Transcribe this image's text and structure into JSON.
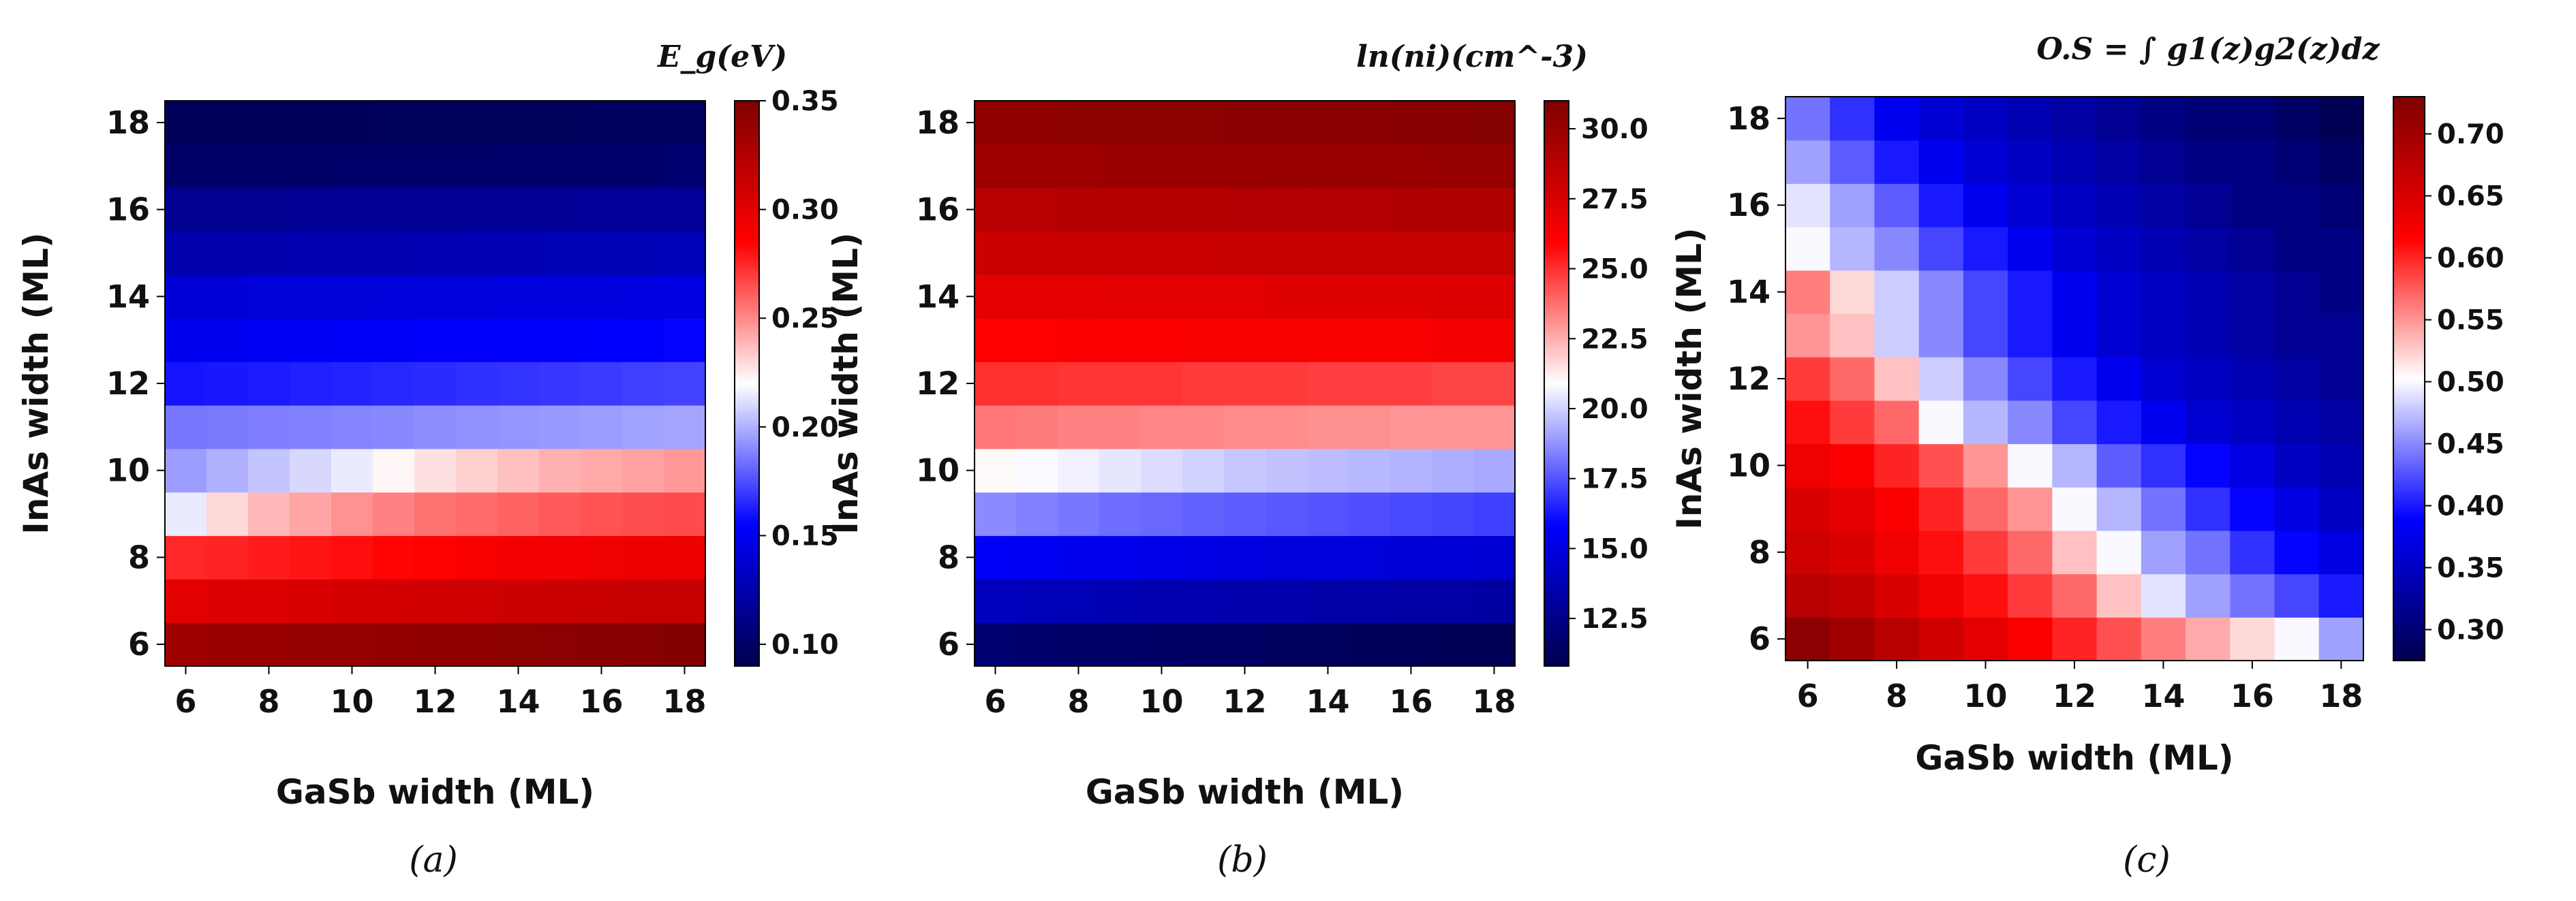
{
  "chart_data": [
    {
      "type": "heatmap",
      "caption": "(a)",
      "colorbar_title": "E_g(eV)",
      "xlabel": "GaSb width (ML)",
      "ylabel": "InAs width (ML)",
      "x": [
        6,
        7,
        8,
        9,
        10,
        11,
        12,
        13,
        14,
        15,
        16,
        17,
        18
      ],
      "y": [
        6,
        7,
        8,
        9,
        10,
        11,
        12,
        13,
        14,
        15,
        16,
        17,
        18
      ],
      "x_ticks": [
        "6",
        "8",
        "10",
        "12",
        "14",
        "16",
        "18"
      ],
      "y_ticks": [
        "6",
        "8",
        "10",
        "12",
        "14",
        "16",
        "18"
      ],
      "colorbar": {
        "min": 0.09,
        "max": 0.35,
        "ticks": [
          "0.10",
          "0.15",
          "0.20",
          "0.25",
          "0.30",
          "0.35"
        ],
        "colormap": "seismic"
      },
      "z_description": "rows indexed by InAs width (6..18), columns by GaSb width (6..18)",
      "row_values": {
        "6": [
          0.335,
          0.336,
          0.337,
          0.338,
          0.339,
          0.34,
          0.341,
          0.342,
          0.343,
          0.344,
          0.345,
          0.346,
          0.348
        ],
        "7": [
          0.3,
          0.302,
          0.303,
          0.305,
          0.307,
          0.308,
          0.309,
          0.31,
          0.311,
          0.312,
          0.313,
          0.314,
          0.314
        ],
        "8": [
          0.275,
          0.276,
          0.278,
          0.28,
          0.282,
          0.284,
          0.286,
          0.288,
          0.29,
          0.291,
          0.292,
          0.293,
          0.294
        ],
        "9": [
          0.215,
          0.23,
          0.238,
          0.243,
          0.248,
          0.252,
          0.256,
          0.258,
          0.26,
          0.262,
          0.264,
          0.265,
          0.266
        ],
        "10": [
          0.195,
          0.2,
          0.205,
          0.21,
          0.215,
          0.222,
          0.228,
          0.232,
          0.236,
          0.24,
          0.242,
          0.244,
          0.246
        ],
        "11": [
          0.185,
          0.186,
          0.187,
          0.188,
          0.189,
          0.19,
          0.191,
          0.192,
          0.193,
          0.194,
          0.195,
          0.196,
          0.197
        ],
        "12": [
          0.16,
          0.161,
          0.162,
          0.163,
          0.164,
          0.165,
          0.166,
          0.167,
          0.168,
          0.169,
          0.17,
          0.171,
          0.172
        ],
        "13": [
          0.15,
          0.15,
          0.151,
          0.151,
          0.152,
          0.152,
          0.153,
          0.153,
          0.154,
          0.154,
          0.155,
          0.155,
          0.156
        ],
        "14": [
          0.14,
          0.14,
          0.141,
          0.141,
          0.141,
          0.142,
          0.142,
          0.142,
          0.143,
          0.143,
          0.143,
          0.144,
          0.144
        ],
        "15": [
          0.125,
          0.125,
          0.125,
          0.126,
          0.126,
          0.126,
          0.127,
          0.127,
          0.127,
          0.128,
          0.128,
          0.128,
          0.129
        ],
        "16": [
          0.115,
          0.115,
          0.115,
          0.116,
          0.116,
          0.116,
          0.116,
          0.117,
          0.117,
          0.117,
          0.118,
          0.118,
          0.118
        ],
        "17": [
          0.1,
          0.1,
          0.1,
          0.1,
          0.101,
          0.101,
          0.101,
          0.101,
          0.102,
          0.102,
          0.102,
          0.102,
          0.103
        ],
        "18": [
          0.095,
          0.095,
          0.095,
          0.095,
          0.095,
          0.096,
          0.096,
          0.096,
          0.096,
          0.096,
          0.097,
          0.097,
          0.097
        ]
      }
    },
    {
      "type": "heatmap",
      "caption": "(b)",
      "colorbar_title": "ln(ni)(cm^-3)",
      "xlabel": "GaSb width (ML)",
      "ylabel": "InAs width (ML)",
      "x": [
        6,
        7,
        8,
        9,
        10,
        11,
        12,
        13,
        14,
        15,
        16,
        17,
        18
      ],
      "y": [
        6,
        7,
        8,
        9,
        10,
        11,
        12,
        13,
        14,
        15,
        16,
        17,
        18
      ],
      "x_ticks": [
        "6",
        "8",
        "10",
        "12",
        "14",
        "16",
        "18"
      ],
      "y_ticks": [
        "6",
        "8",
        "10",
        "12",
        "14",
        "16",
        "18"
      ],
      "colorbar": {
        "min": 10.8,
        "max": 31.0,
        "ticks": [
          "12.5",
          "15.0",
          "17.5",
          "20.0",
          "22.5",
          "25.0",
          "27.5",
          "30.0"
        ],
        "colormap": "seismic"
      },
      "z_description": "rows indexed by InAs width (6..18), columns by GaSb width (6..18)",
      "row_values": {
        "6": [
          11.8,
          11.7,
          11.6,
          11.6,
          11.5,
          11.4,
          11.4,
          11.3,
          11.3,
          11.2,
          11.2,
          11.1,
          11.1
        ],
        "7": [
          14.0,
          13.9,
          13.8,
          13.7,
          13.6,
          13.6,
          13.5,
          13.5,
          13.4,
          13.4,
          13.3,
          13.3,
          13.2
        ],
        "8": [
          15.6,
          15.5,
          15.4,
          15.3,
          15.2,
          15.1,
          15.0,
          14.9,
          14.9,
          14.8,
          14.7,
          14.7,
          14.6
        ],
        "9": [
          18.6,
          18.4,
          18.2,
          18.0,
          17.9,
          17.8,
          17.7,
          17.6,
          17.5,
          17.4,
          17.3,
          17.2,
          17.1
        ],
        "10": [
          21.0,
          20.8,
          20.6,
          20.4,
          20.2,
          20.0,
          19.8,
          19.7,
          19.6,
          19.5,
          19.4,
          19.3,
          19.2
        ],
        "11": [
          23.6,
          23.5,
          23.4,
          23.4,
          23.3,
          23.3,
          23.2,
          23.2,
          23.1,
          23.1,
          23.0,
          23.0,
          23.0
        ],
        "12": [
          25.0,
          25.0,
          24.9,
          24.9,
          24.9,
          24.8,
          24.8,
          24.8,
          24.7,
          24.7,
          24.7,
          24.6,
          24.6
        ],
        "13": [
          26.0,
          26.0,
          26.1,
          26.1,
          26.1,
          26.2,
          26.2,
          26.2,
          26.3,
          26.3,
          26.3,
          26.4,
          26.4
        ],
        "14": [
          27.0,
          27.0,
          27.0,
          27.1,
          27.1,
          27.1,
          27.1,
          27.2,
          27.2,
          27.2,
          27.2,
          27.3,
          27.3
        ],
        "15": [
          28.0,
          28.0,
          28.1,
          28.1,
          28.1,
          28.1,
          28.2,
          28.2,
          28.2,
          28.2,
          28.3,
          28.3,
          28.3
        ],
        "16": [
          28.8,
          28.8,
          28.9,
          28.9,
          28.9,
          28.9,
          29.0,
          29.0,
          29.0,
          29.0,
          29.1,
          29.1,
          29.1
        ],
        "17": [
          29.8,
          29.8,
          29.8,
          29.9,
          29.9,
          29.9,
          29.9,
          30.0,
          30.0,
          30.0,
          30.0,
          30.1,
          30.1
        ],
        "18": [
          30.4,
          30.4,
          30.5,
          30.5,
          30.5,
          30.5,
          30.6,
          30.6,
          30.6,
          30.6,
          30.7,
          30.7,
          30.8
        ]
      }
    },
    {
      "type": "heatmap",
      "caption": "(c)",
      "colorbar_title": "O.S = ∫ g1(z)g2(z)dz",
      "xlabel": "GaSb width (ML)",
      "ylabel": "InAs width (ML)",
      "x": [
        6,
        7,
        8,
        9,
        10,
        11,
        12,
        13,
        14,
        15,
        16,
        17,
        18
      ],
      "y": [
        6,
        7,
        8,
        9,
        10,
        11,
        12,
        13,
        14,
        15,
        16,
        17,
        18
      ],
      "x_ticks": [
        "6",
        "8",
        "10",
        "12",
        "14",
        "16",
        "18"
      ],
      "y_ticks": [
        "6",
        "8",
        "10",
        "12",
        "14",
        "16",
        "18"
      ],
      "colorbar": {
        "min": 0.275,
        "max": 0.73,
        "ticks": [
          "0.30",
          "0.35",
          "0.40",
          "0.45",
          "0.50",
          "0.55",
          "0.60",
          "0.65",
          "0.70"
        ],
        "colormap": "seismic"
      },
      "z_description": "rows indexed by InAs width (6..18), columns by GaSb width (6..18)",
      "row_values": {
        "6": [
          0.72,
          0.7,
          0.68,
          0.66,
          0.64,
          0.62,
          0.6,
          0.58,
          0.56,
          0.54,
          0.52,
          0.5,
          0.46
        ],
        "7": [
          0.68,
          0.67,
          0.65,
          0.63,
          0.61,
          0.59,
          0.57,
          0.53,
          0.49,
          0.46,
          0.44,
          0.42,
          0.4
        ],
        "8": [
          0.66,
          0.65,
          0.63,
          0.61,
          0.59,
          0.57,
          0.53,
          0.5,
          0.46,
          0.44,
          0.41,
          0.39,
          0.37
        ],
        "9": [
          0.65,
          0.64,
          0.62,
          0.6,
          0.57,
          0.55,
          0.5,
          0.47,
          0.44,
          0.41,
          0.39,
          0.37,
          0.35
        ],
        "10": [
          0.63,
          0.62,
          0.6,
          0.58,
          0.55,
          0.5,
          0.47,
          0.43,
          0.41,
          0.39,
          0.37,
          0.35,
          0.34
        ],
        "11": [
          0.61,
          0.59,
          0.57,
          0.5,
          0.47,
          0.45,
          0.42,
          0.4,
          0.38,
          0.36,
          0.35,
          0.34,
          0.33
        ],
        "12": [
          0.59,
          0.57,
          0.53,
          0.48,
          0.45,
          0.42,
          0.4,
          0.38,
          0.36,
          0.35,
          0.34,
          0.33,
          0.32
        ],
        "13": [
          0.55,
          0.53,
          0.48,
          0.45,
          0.42,
          0.4,
          0.38,
          0.36,
          0.35,
          0.34,
          0.33,
          0.32,
          0.32
        ],
        "14": [
          0.56,
          0.52,
          0.48,
          0.45,
          0.42,
          0.4,
          0.38,
          0.36,
          0.35,
          0.34,
          0.33,
          0.32,
          0.31
        ],
        "15": [
          0.5,
          0.47,
          0.45,
          0.42,
          0.4,
          0.38,
          0.36,
          0.35,
          0.34,
          0.33,
          0.32,
          0.31,
          0.31
        ],
        "16": [
          0.49,
          0.46,
          0.43,
          0.4,
          0.38,
          0.36,
          0.35,
          0.34,
          0.33,
          0.32,
          0.31,
          0.31,
          0.3
        ],
        "17": [
          0.46,
          0.43,
          0.4,
          0.38,
          0.36,
          0.35,
          0.34,
          0.33,
          0.32,
          0.31,
          0.31,
          0.3,
          0.29
        ],
        "18": [
          0.44,
          0.41,
          0.38,
          0.36,
          0.35,
          0.34,
          0.33,
          0.32,
          0.31,
          0.3,
          0.3,
          0.29,
          0.28
        ]
      }
    }
  ]
}
